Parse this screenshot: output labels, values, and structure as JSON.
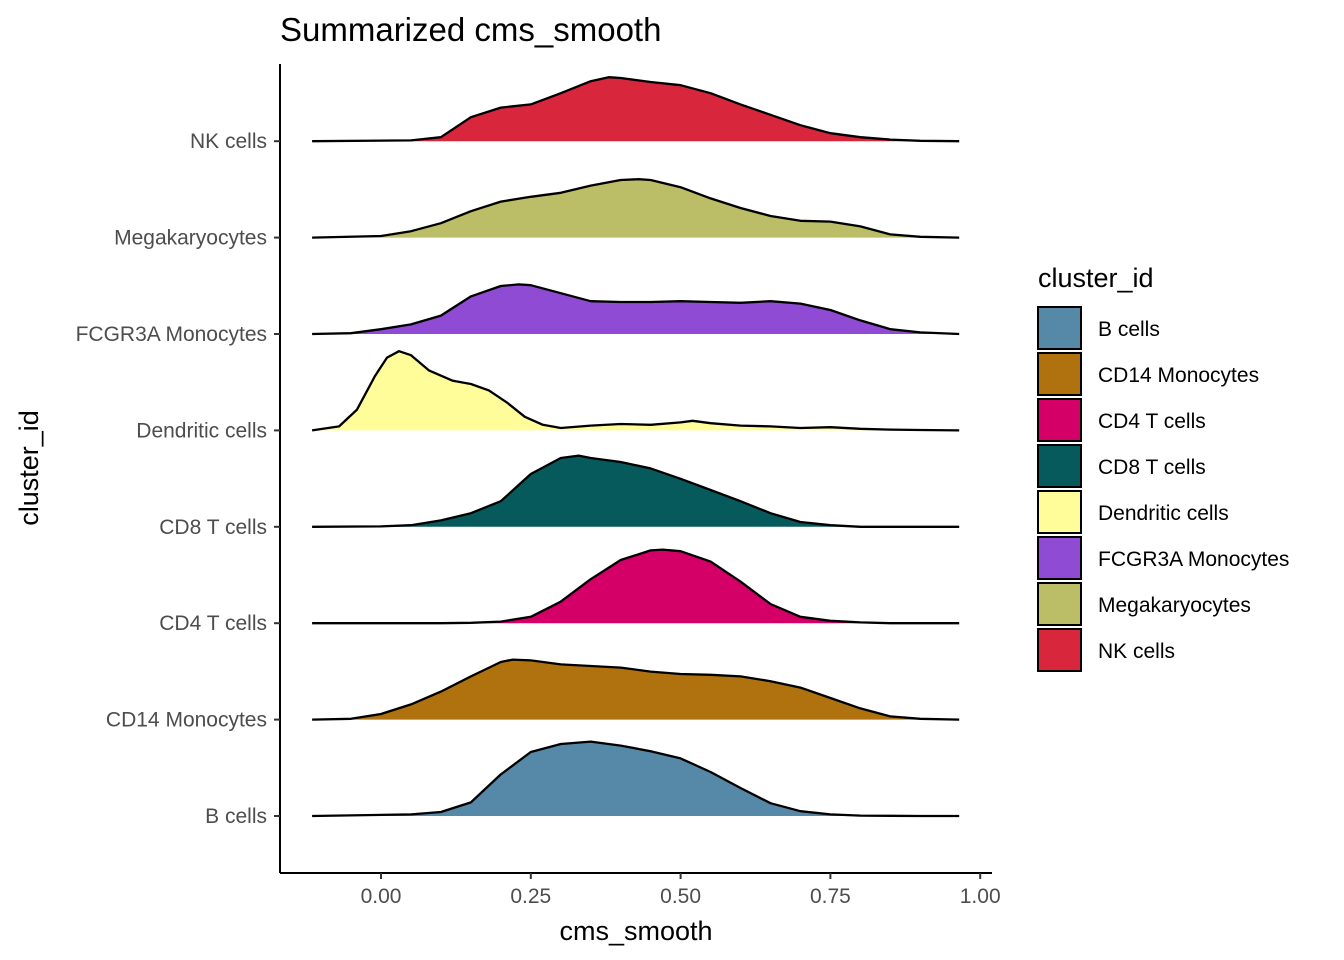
{
  "chart_data": {
    "type": "ridgeline",
    "title": "Summarized cms_smooth",
    "xlabel": "cms_smooth",
    "ylabel": "cluster_id",
    "xlim": [
      -0.17,
      1.02
    ],
    "x_ticks": [
      0.0,
      0.25,
      0.5,
      0.75,
      1.0
    ],
    "x_tick_labels": [
      "0.00",
      "0.25",
      "0.50",
      "0.75",
      "1.00"
    ],
    "grid": false,
    "legend": {
      "title": "cluster_id",
      "position": "right",
      "entries": [
        {
          "label": "B cells",
          "color": "#5589A7"
        },
        {
          "label": "CD14 Monocytes",
          "color": "#AF720E"
        },
        {
          "label": "CD4 T cells",
          "color": "#D40068"
        },
        {
          "label": "CD8 T cells",
          "color": "#075A5B"
        },
        {
          "label": "Dendritic cells",
          "color": "#FFFD99"
        },
        {
          "label": "FCGR3A Monocytes",
          "color": "#904BD4"
        },
        {
          "label": "Megakaryocytes",
          "color": "#BBBE66"
        },
        {
          "label": "NK cells",
          "color": "#D8273C"
        }
      ]
    },
    "density_x_range": [
      -0.115,
      0.965
    ],
    "series": [
      {
        "name": "B cells",
        "color": "#5589A7",
        "points": [
          [
            -0.115,
            0
          ],
          [
            0.05,
            0.02
          ],
          [
            0.1,
            0.05
          ],
          [
            0.15,
            0.17
          ],
          [
            0.2,
            0.52
          ],
          [
            0.25,
            0.8
          ],
          [
            0.3,
            0.9
          ],
          [
            0.35,
            0.93
          ],
          [
            0.4,
            0.88
          ],
          [
            0.45,
            0.81
          ],
          [
            0.5,
            0.72
          ],
          [
            0.55,
            0.55
          ],
          [
            0.6,
            0.35
          ],
          [
            0.65,
            0.16
          ],
          [
            0.7,
            0.06
          ],
          [
            0.75,
            0.02
          ],
          [
            0.8,
            0.005
          ],
          [
            0.9,
            0
          ],
          [
            0.965,
            0
          ]
        ]
      },
      {
        "name": "CD14 Monocytes",
        "color": "#AF720E",
        "points": [
          [
            -0.115,
            0
          ],
          [
            -0.05,
            0.01
          ],
          [
            0.0,
            0.07
          ],
          [
            0.05,
            0.19
          ],
          [
            0.1,
            0.35
          ],
          [
            0.15,
            0.54
          ],
          [
            0.2,
            0.72
          ],
          [
            0.22,
            0.75
          ],
          [
            0.25,
            0.74
          ],
          [
            0.3,
            0.69
          ],
          [
            0.35,
            0.67
          ],
          [
            0.4,
            0.65
          ],
          [
            0.45,
            0.6
          ],
          [
            0.5,
            0.57
          ],
          [
            0.55,
            0.56
          ],
          [
            0.6,
            0.54
          ],
          [
            0.65,
            0.48
          ],
          [
            0.7,
            0.4
          ],
          [
            0.75,
            0.27
          ],
          [
            0.8,
            0.14
          ],
          [
            0.85,
            0.04
          ],
          [
            0.9,
            0.01
          ],
          [
            0.965,
            0
          ]
        ]
      },
      {
        "name": "CD4 T cells",
        "color": "#D40068",
        "points": [
          [
            -0.115,
            0
          ],
          [
            0.1,
            0
          ],
          [
            0.15,
            0.005
          ],
          [
            0.2,
            0.02
          ],
          [
            0.25,
            0.08
          ],
          [
            0.3,
            0.27
          ],
          [
            0.35,
            0.55
          ],
          [
            0.4,
            0.79
          ],
          [
            0.45,
            0.91
          ],
          [
            0.47,
            0.92
          ],
          [
            0.5,
            0.9
          ],
          [
            0.55,
            0.77
          ],
          [
            0.6,
            0.52
          ],
          [
            0.65,
            0.24
          ],
          [
            0.7,
            0.08
          ],
          [
            0.75,
            0.03
          ],
          [
            0.8,
            0.01
          ],
          [
            0.85,
            0
          ],
          [
            0.965,
            0
          ]
        ]
      },
      {
        "name": "CD8 T cells",
        "color": "#075A5B",
        "points": [
          [
            -0.115,
            0
          ],
          [
            0.0,
            0.005
          ],
          [
            0.05,
            0.02
          ],
          [
            0.1,
            0.08
          ],
          [
            0.15,
            0.17
          ],
          [
            0.2,
            0.32
          ],
          [
            0.25,
            0.66
          ],
          [
            0.3,
            0.86
          ],
          [
            0.33,
            0.89
          ],
          [
            0.35,
            0.86
          ],
          [
            0.4,
            0.81
          ],
          [
            0.45,
            0.73
          ],
          [
            0.5,
            0.6
          ],
          [
            0.55,
            0.46
          ],
          [
            0.6,
            0.32
          ],
          [
            0.65,
            0.17
          ],
          [
            0.7,
            0.06
          ],
          [
            0.75,
            0.02
          ],
          [
            0.8,
            0
          ],
          [
            0.965,
            0
          ]
        ]
      },
      {
        "name": "Dendritic cells",
        "color": "#FFFD99",
        "points": [
          [
            -0.115,
            0
          ],
          [
            -0.07,
            0.05
          ],
          [
            -0.04,
            0.26
          ],
          [
            -0.01,
            0.68
          ],
          [
            0.01,
            0.91
          ],
          [
            0.03,
            0.99
          ],
          [
            0.05,
            0.94
          ],
          [
            0.08,
            0.75
          ],
          [
            0.12,
            0.62
          ],
          [
            0.15,
            0.58
          ],
          [
            0.18,
            0.5
          ],
          [
            0.21,
            0.35
          ],
          [
            0.24,
            0.17
          ],
          [
            0.27,
            0.07
          ],
          [
            0.3,
            0.03
          ],
          [
            0.35,
            0.06
          ],
          [
            0.4,
            0.08
          ],
          [
            0.45,
            0.07
          ],
          [
            0.5,
            0.1
          ],
          [
            0.52,
            0.12
          ],
          [
            0.55,
            0.09
          ],
          [
            0.6,
            0.06
          ],
          [
            0.65,
            0.05
          ],
          [
            0.7,
            0.03
          ],
          [
            0.75,
            0.04
          ],
          [
            0.8,
            0.02
          ],
          [
            0.85,
            0.01
          ],
          [
            0.9,
            0.005
          ],
          [
            0.965,
            0
          ]
        ]
      },
      {
        "name": "FCGR3A Monocytes",
        "color": "#904BD4",
        "points": [
          [
            -0.115,
            0
          ],
          [
            -0.05,
            0.01
          ],
          [
            0.0,
            0.06
          ],
          [
            0.05,
            0.12
          ],
          [
            0.1,
            0.23
          ],
          [
            0.15,
            0.47
          ],
          [
            0.2,
            0.6
          ],
          [
            0.23,
            0.62
          ],
          [
            0.25,
            0.61
          ],
          [
            0.3,
            0.51
          ],
          [
            0.35,
            0.41
          ],
          [
            0.4,
            0.4
          ],
          [
            0.45,
            0.4
          ],
          [
            0.5,
            0.41
          ],
          [
            0.55,
            0.4
          ],
          [
            0.6,
            0.39
          ],
          [
            0.65,
            0.41
          ],
          [
            0.7,
            0.38
          ],
          [
            0.75,
            0.3
          ],
          [
            0.8,
            0.17
          ],
          [
            0.85,
            0.06
          ],
          [
            0.9,
            0.02
          ],
          [
            0.965,
            0
          ]
        ]
      },
      {
        "name": "Megakaryocytes",
        "color": "#BBBE66",
        "points": [
          [
            -0.115,
            0
          ],
          [
            0.0,
            0.02
          ],
          [
            0.05,
            0.08
          ],
          [
            0.1,
            0.18
          ],
          [
            0.15,
            0.33
          ],
          [
            0.2,
            0.45
          ],
          [
            0.25,
            0.51
          ],
          [
            0.3,
            0.56
          ],
          [
            0.35,
            0.65
          ],
          [
            0.4,
            0.72
          ],
          [
            0.43,
            0.73
          ],
          [
            0.45,
            0.72
          ],
          [
            0.5,
            0.63
          ],
          [
            0.55,
            0.49
          ],
          [
            0.6,
            0.37
          ],
          [
            0.65,
            0.27
          ],
          [
            0.7,
            0.21
          ],
          [
            0.75,
            0.2
          ],
          [
            0.8,
            0.14
          ],
          [
            0.85,
            0.04
          ],
          [
            0.9,
            0.01
          ],
          [
            0.965,
            0
          ]
        ]
      },
      {
        "name": "NK cells",
        "color": "#D8273C",
        "points": [
          [
            -0.115,
            0
          ],
          [
            0.05,
            0.01
          ],
          [
            0.1,
            0.05
          ],
          [
            0.15,
            0.3
          ],
          [
            0.2,
            0.42
          ],
          [
            0.25,
            0.46
          ],
          [
            0.3,
            0.6
          ],
          [
            0.35,
            0.75
          ],
          [
            0.38,
            0.8
          ],
          [
            0.4,
            0.79
          ],
          [
            0.45,
            0.74
          ],
          [
            0.5,
            0.7
          ],
          [
            0.55,
            0.6
          ],
          [
            0.6,
            0.46
          ],
          [
            0.65,
            0.33
          ],
          [
            0.7,
            0.2
          ],
          [
            0.75,
            0.1
          ],
          [
            0.8,
            0.05
          ],
          [
            0.85,
            0.02
          ],
          [
            0.9,
            0.005
          ],
          [
            0.965,
            0
          ]
        ]
      }
    ]
  }
}
